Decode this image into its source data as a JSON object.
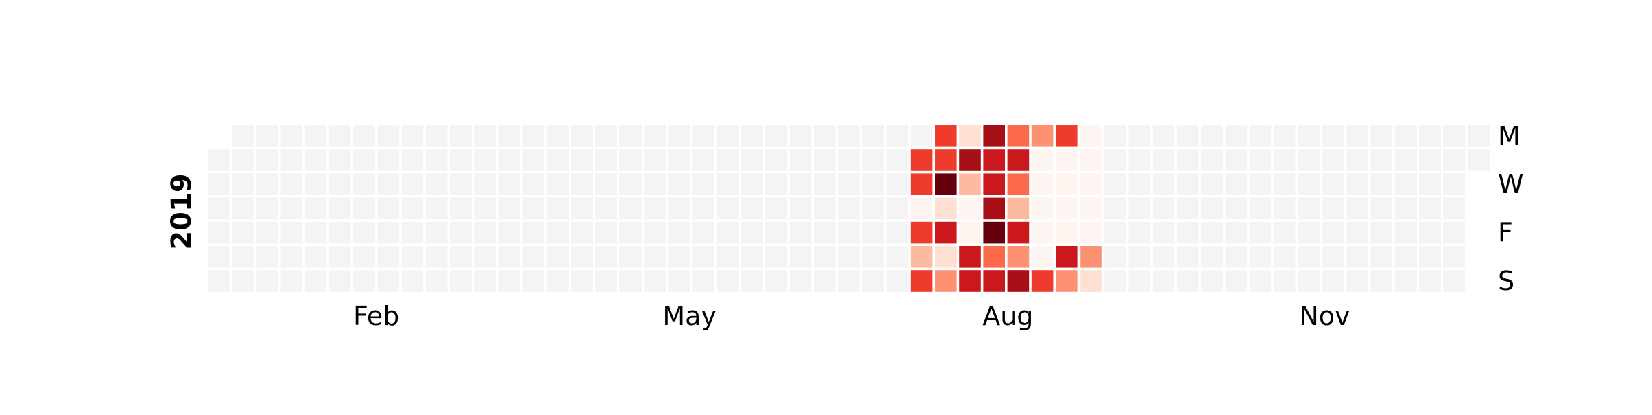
{
  "chart_data": {
    "type": "heatmap",
    "year": "2019",
    "day_labels": [
      "M",
      "W",
      "F",
      "S"
    ],
    "month_labels": [
      "Feb",
      "May",
      "Aug",
      "Nov"
    ],
    "colormap": "Reds",
    "empty_color": "#f4f4f4",
    "scale": [
      0,
      9
    ],
    "data": [
      {
        "week": 29,
        "values": [
          null,
          6,
          6,
          1,
          6,
          3,
          6
        ]
      },
      {
        "week": 30,
        "values": [
          6,
          6,
          9,
          2,
          7,
          2,
          4
        ]
      },
      {
        "week": 31,
        "values": [
          2,
          8,
          3,
          1,
          1,
          7,
          7
        ]
      },
      {
        "week": 32,
        "values": [
          8,
          7,
          7,
          8,
          9,
          5,
          7
        ]
      },
      {
        "week": 33,
        "values": [
          5,
          7,
          5,
          3,
          7,
          4,
          8
        ]
      },
      {
        "week": 34,
        "values": [
          4,
          1,
          1,
          1,
          1,
          1,
          6
        ]
      },
      {
        "week": 35,
        "values": [
          6,
          1,
          1,
          1,
          1,
          7,
          4
        ]
      },
      {
        "week": 36,
        "values": [
          1,
          1,
          1,
          1,
          1,
          4,
          2
        ]
      }
    ]
  }
}
